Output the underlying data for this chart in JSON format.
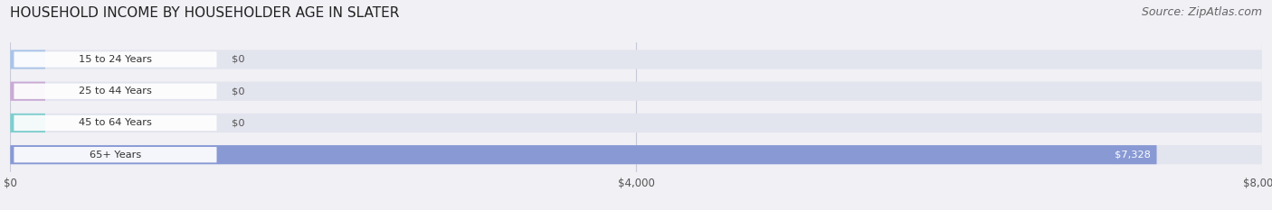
{
  "title": "HOUSEHOLD INCOME BY HOUSEHOLDER AGE IN SLATER",
  "source": "Source: ZipAtlas.com",
  "categories": [
    "15 to 24 Years",
    "25 to 44 Years",
    "45 to 64 Years",
    "65+ Years"
  ],
  "values": [
    0,
    0,
    0,
    7328
  ],
  "bar_colors": [
    "#aac4e8",
    "#c9aad4",
    "#7ecece",
    "#8899d4"
  ],
  "value_labels": [
    "$0",
    "$0",
    "$0",
    "$7,328"
  ],
  "x_ticks": [
    0,
    4000,
    8000
  ],
  "x_tick_labels": [
    "$0",
    "$4,000",
    "$8,000"
  ],
  "xlim": [
    0,
    8000
  ],
  "background_color": "#f0f0f5",
  "bar_bg_color": "#e2e4ee",
  "title_fontsize": 11,
  "source_fontsize": 9
}
